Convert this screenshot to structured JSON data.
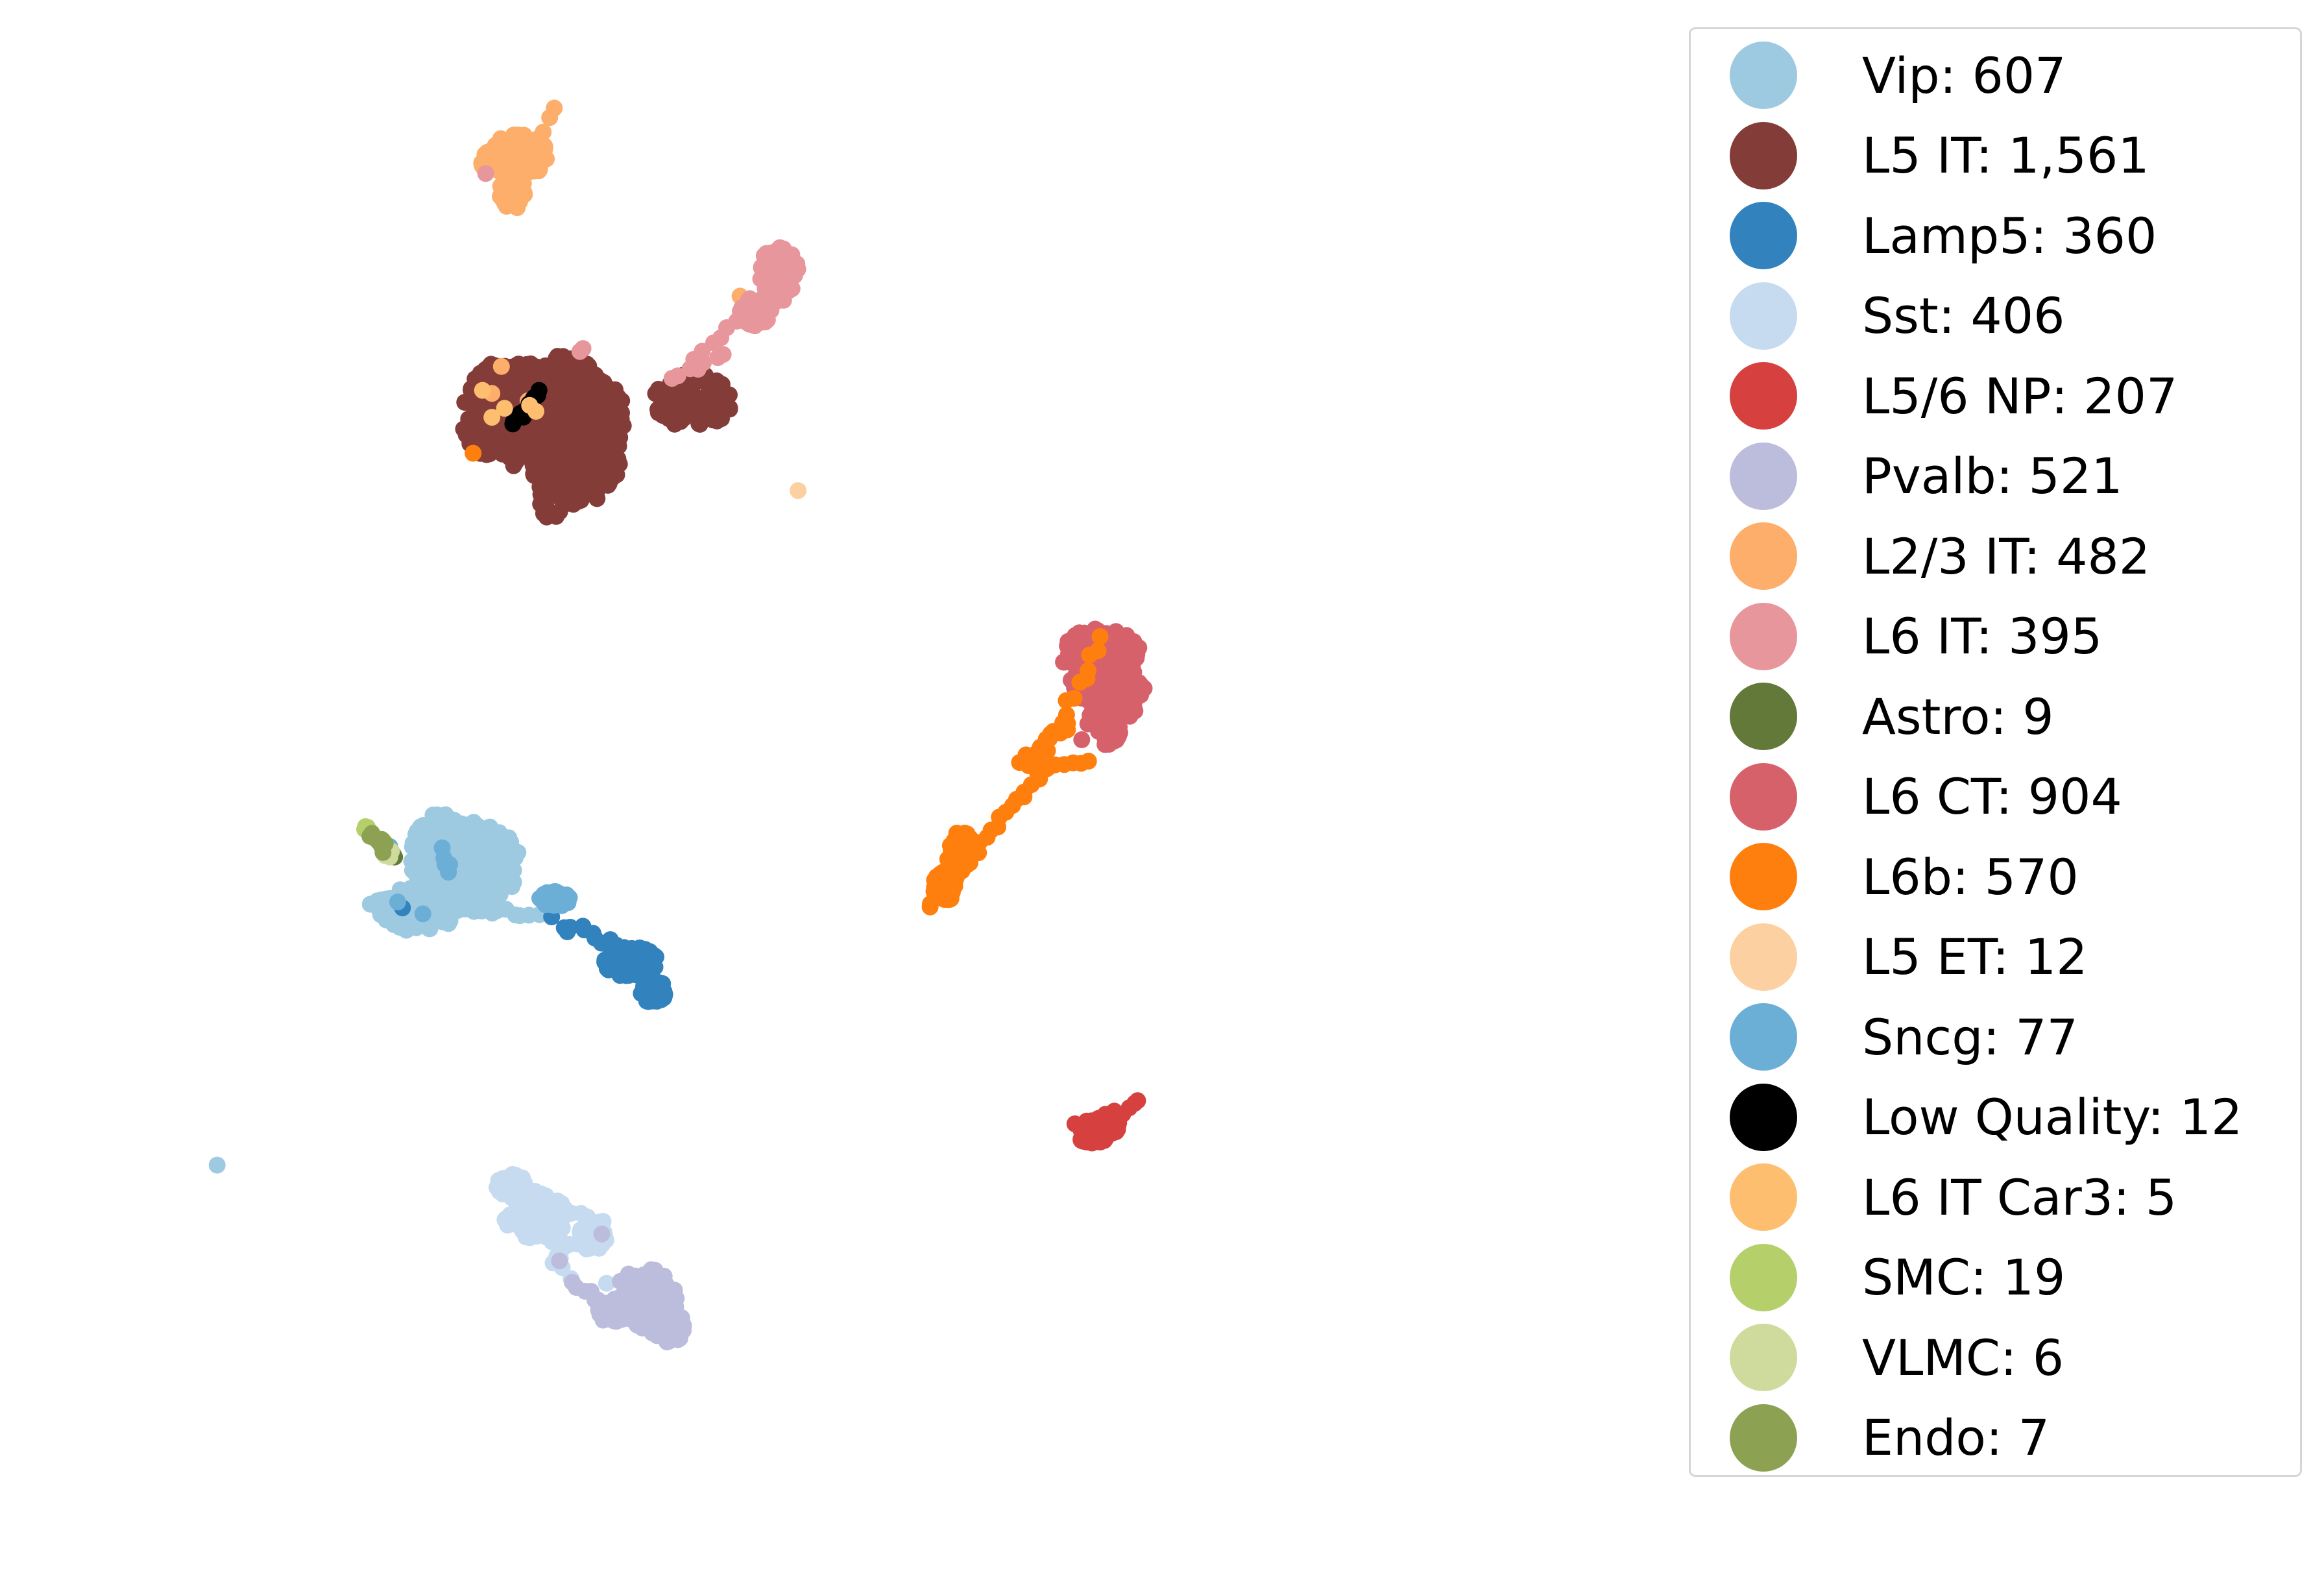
{
  "chart_data": {
    "type": "scatter",
    "title": "",
    "xlabel": "",
    "ylabel": "",
    "axes_visible": false,
    "grid": false,
    "xlim": [
      0,
      10
    ],
    "ylim": [
      0,
      10
    ],
    "legend_placement": "right",
    "series": [
      {
        "name": "Vip: 607",
        "color": "#9ecae1",
        "blobs": [
          [
            2.55,
            4.35,
            0.35,
            0.3
          ],
          [
            2.25,
            4.05,
            0.25,
            0.15
          ],
          [
            2.4,
            4.5,
            0.2,
            0.2
          ]
        ],
        "lines": [
          [
            2.3,
            4.1,
            3.0,
            4.0,
            14
          ],
          [
            1.95,
            4.1,
            2.4,
            4.1,
            10
          ]
        ],
        "points": [
          [
            0.97,
            2.34
          ]
        ]
      },
      {
        "name": "L5 IT: 1,561",
        "color": "#843c39",
        "blobs": [
          [
            2.95,
            7.35,
            0.45,
            0.35
          ],
          [
            3.25,
            7.1,
            0.3,
            0.35
          ],
          [
            3.35,
            7.35,
            0.22,
            0.25
          ],
          [
            3.15,
            7.6,
            0.25,
            0.15
          ],
          [
            4.0,
            7.45,
            0.25,
            0.18
          ],
          [
            3.1,
            6.85,
            0.08,
            0.2
          ],
          [
            2.75,
            7.55,
            0.15,
            0.15
          ]
        ],
        "lines": [
          [
            3.35,
            7.1,
            3.45,
            7.3,
            6
          ]
        ],
        "points": [
          [
            3.25,
            7.65
          ],
          [
            3.22,
            7.55
          ]
        ]
      },
      {
        "name": "Lamp5: 360",
        "color": "#3182bd",
        "blobs": [
          [
            3.6,
            3.7,
            0.18,
            0.1
          ],
          [
            3.75,
            3.5,
            0.08,
            0.08
          ]
        ],
        "lines": [
          [
            3.2,
            3.95,
            3.75,
            3.7,
            14
          ]
        ],
        "points": [
          [
            2.15,
            4.06
          ],
          [
            3.1,
            4.0
          ],
          [
            3.2,
            3.9
          ]
        ]
      },
      {
        "name": "Sst: 406",
        "color": "#c6dbef",
        "blobs": [
          [
            3.0,
            2.0,
            0.2,
            0.15
          ],
          [
            2.85,
            2.2,
            0.1,
            0.08
          ],
          [
            3.35,
            1.85,
            0.1,
            0.08
          ]
        ],
        "lines": [
          [
            2.8,
            2.25,
            3.4,
            1.95,
            12
          ],
          [
            3.1,
            1.7,
            3.45,
            1.95,
            8
          ],
          [
            3.0,
            2.05,
            3.2,
            1.6,
            6
          ]
        ],
        "points": [
          [
            3.45,
            1.55
          ],
          [
            3.15,
            1.85
          ]
        ]
      },
      {
        "name": "L5/6 NP: 207",
        "color": "#d6403f",
        "blobs": [
          [
            6.55,
            2.55,
            0.1,
            0.07
          ],
          [
            6.65,
            2.6,
            0.07,
            0.05
          ]
        ],
        "lines": [
          [
            6.45,
            2.6,
            6.85,
            2.75,
            10
          ]
        ],
        "points": []
      },
      {
        "name": "Pvalb: 521",
        "color": "#bcbddc",
        "blobs": [
          [
            3.7,
            1.45,
            0.2,
            0.2
          ],
          [
            3.85,
            1.25,
            0.12,
            0.1
          ],
          [
            3.5,
            1.35,
            0.12,
            0.06
          ]
        ],
        "lines": [
          [
            3.25,
            1.55,
            3.5,
            1.35,
            8
          ]
        ],
        "points": [
          [
            3.15,
            1.7
          ],
          [
            3.42,
            1.88
          ]
        ]
      },
      {
        "name": "L2/3 IT: 482",
        "color": "#fdae6b",
        "blobs": [
          [
            2.9,
            9.1,
            0.18,
            0.15
          ],
          [
            2.85,
            8.85,
            0.08,
            0.12
          ],
          [
            2.75,
            9.05,
            0.1,
            0.08
          ]
        ],
        "lines": [
          [
            2.95,
            9.0,
            3.1,
            9.4,
            6
          ]
        ],
        "points": [
          [
            2.78,
            7.68
          ],
          [
            2.72,
            7.5
          ],
          [
            2.95,
            7.45
          ],
          [
            4.3,
            8.15
          ]
        ]
      },
      {
        "name": "L6 IT: 395",
        "color": "#e7969c",
        "blobs": [
          [
            4.55,
            8.3,
            0.12,
            0.2
          ],
          [
            4.4,
            8.05,
            0.1,
            0.1
          ]
        ],
        "lines": [
          [
            4.0,
            7.75,
            4.55,
            8.2,
            10
          ],
          [
            3.85,
            7.6,
            4.2,
            7.75,
            6
          ]
        ],
        "points": [
          [
            2.68,
            8.97
          ],
          [
            3.28,
            7.78
          ],
          [
            3.3,
            7.8
          ]
        ]
      },
      {
        "name": "Astro: 9",
        "color": "#637939",
        "blobs": [],
        "lines": [],
        "points": [
          [
            2.02,
            4.5
          ],
          [
            2.06,
            4.45
          ],
          [
            1.95,
            4.55
          ],
          [
            2.09,
            4.42
          ],
          [
            2.0,
            4.5
          ],
          [
            1.98,
            4.52
          ],
          [
            2.04,
            4.48
          ],
          [
            2.07,
            4.44
          ],
          [
            2.1,
            4.4
          ]
        ]
      },
      {
        "name": "L6 CT: 904",
        "color": "#d6616b",
        "blobs": [
          [
            6.6,
            5.75,
            0.25,
            0.18
          ],
          [
            6.7,
            5.5,
            0.18,
            0.18
          ],
          [
            6.5,
            5.55,
            0.1,
            0.1
          ],
          [
            6.65,
            5.25,
            0.07,
            0.12
          ]
        ],
        "lines": [
          [
            6.5,
            5.2,
            6.55,
            5.7,
            6
          ]
        ],
        "points": []
      },
      {
        "name": "L6b: 570",
        "color": "#ff7f0e",
        "blobs": [
          [
            5.7,
            4.45,
            0.1,
            0.12
          ],
          [
            5.6,
            4.2,
            0.07,
            0.1
          ]
        ],
        "lines": [
          [
            5.5,
            4.05,
            6.25,
            5.0,
            24
          ],
          [
            6.2,
            5.0,
            6.6,
            5.85,
            14
          ],
          [
            6.1,
            5.05,
            6.4,
            5.3,
            8
          ],
          [
            6.15,
            5.0,
            6.5,
            5.05,
            8
          ]
        ],
        "points": [
          [
            2.6,
            7.1
          ]
        ]
      },
      {
        "name": "L5 ET: 12",
        "color": "#fdd0a2",
        "blobs": [],
        "lines": [],
        "points": [
          [
            4.67,
            6.85
          ]
        ]
      },
      {
        "name": "Sncg: 77",
        "color": "#6baed6",
        "blobs": [
          [
            3.12,
            4.12,
            0.1,
            0.05
          ]
        ],
        "lines": [
          [
            2.4,
            4.45,
            2.45,
            4.3,
            3
          ]
        ],
        "points": [
          [
            2.12,
            4.1
          ],
          [
            2.28,
            4.02
          ],
          [
            2.45,
            4.35
          ],
          [
            3.05,
            4.15
          ],
          [
            2.07,
            4.47
          ]
        ]
      },
      {
        "name": "Low Quality: 12",
        "color": "#000000",
        "blobs": [],
        "lines": [
          [
            2.85,
            7.28,
            3.02,
            7.5,
            10
          ]
        ],
        "points": [
          [
            3.02,
            7.52
          ]
        ]
      },
      {
        "name": "L6 IT Car3: 5",
        "color": "#fdbf6f",
        "blobs": [],
        "lines": [],
        "points": [
          [
            2.66,
            7.52
          ],
          [
            2.72,
            7.34
          ],
          [
            2.8,
            7.4
          ],
          [
            2.96,
            7.42
          ],
          [
            3.0,
            7.38
          ]
        ]
      },
      {
        "name": "SMC: 19",
        "color": "#b5cf6b",
        "blobs": [],
        "lines": [
          [
            1.9,
            4.6,
            2.05,
            4.45,
            10
          ]
        ],
        "points": []
      },
      {
        "name": "VLMC: 6",
        "color": "#cedb9c",
        "blobs": [],
        "lines": [],
        "points": [
          [
            2.05,
            4.42
          ],
          [
            2.07,
            4.4
          ],
          [
            2.03,
            4.45
          ],
          [
            2.06,
            4.43
          ],
          [
            2.04,
            4.41
          ],
          [
            2.08,
            4.44
          ]
        ]
      },
      {
        "name": "Endo: 7",
        "color": "#8ca252",
        "blobs": [],
        "lines": [
          [
            1.95,
            4.55,
            2.05,
            4.45,
            7
          ]
        ],
        "points": []
      }
    ]
  }
}
